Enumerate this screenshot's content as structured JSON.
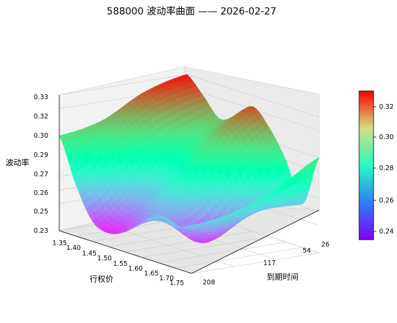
{
  "chart_data": {
    "type": "surface3d",
    "title": "588000 波动率曲面 —— 2026-02-27",
    "xlabel": "行权价",
    "ylabel": "到期时间",
    "zlabel": "波动率",
    "x_ticks": [
      "1.35",
      "1.40",
      "1.45",
      "1.50",
      "1.55",
      "1.60",
      "1.65",
      "1.70",
      "1.75"
    ],
    "y_ticks": [
      "26",
      "54",
      "117",
      "208"
    ],
    "z_ticks": [
      "0.23",
      "0.25",
      "0.26",
      "0.27",
      "0.29",
      "0.30",
      "0.32",
      "0.33"
    ],
    "colorbar_ticks": [
      "0.24",
      "0.26",
      "0.28",
      "0.30",
      "0.32"
    ],
    "strike_range": [
      1.35,
      1.75
    ],
    "expiry_days": [
      26,
      54,
      117,
      208
    ],
    "zlim": [
      0.23,
      0.33
    ],
    "color_range": [
      0.235,
      0.332
    ],
    "colormap": "rainbow",
    "surface_vol_grid": [
      [
        0.33,
        0.318,
        0.305,
        0.312,
        0.322,
        0.31,
        0.29,
        0.262,
        0.3
      ],
      [
        0.322,
        0.31,
        0.29,
        0.292,
        0.3,
        0.285,
        0.262,
        0.262,
        0.282
      ],
      [
        0.306,
        0.292,
        0.268,
        0.262,
        0.268,
        0.258,
        0.24,
        0.252,
        0.27
      ],
      [
        0.3,
        0.268,
        0.245,
        0.24,
        0.245,
        0.256,
        0.265,
        0.26,
        0.265
      ]
    ]
  }
}
